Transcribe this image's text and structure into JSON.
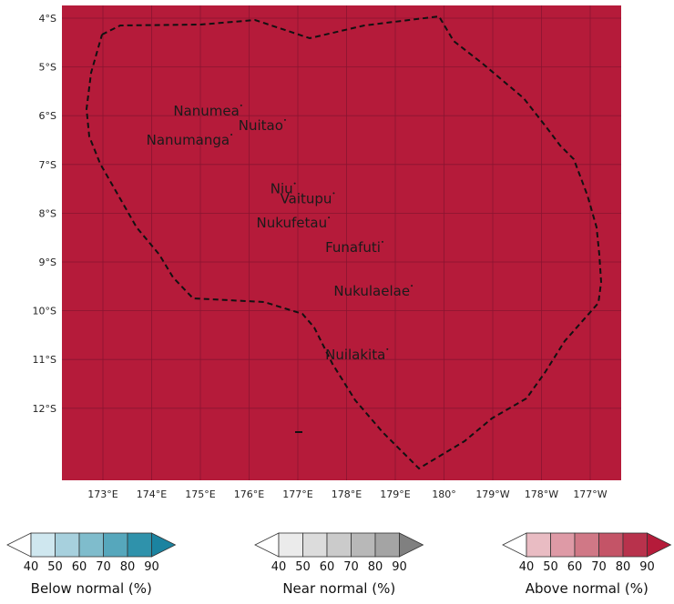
{
  "map": {
    "fill_color": "#b51b3a",
    "grid_color": "#8a1530",
    "y_ticks": [
      "4°S",
      "5°S",
      "6°S",
      "7°S",
      "8°S",
      "9°S",
      "10°S",
      "11°S",
      "12°S"
    ],
    "x_ticks": [
      "173°E",
      "174°E",
      "175°E",
      "176°E",
      "177°E",
      "178°E",
      "179°E",
      "180°",
      "179°W",
      "178°W",
      "177°W"
    ],
    "islands": [
      {
        "name": "Nanumea",
        "lon": 175.8,
        "lat": -5.9
      },
      {
        "name": "Nuitao",
        "lon": 176.7,
        "lat": -6.2
      },
      {
        "name": "Nanumanga",
        "lon": 175.6,
        "lat": -6.5
      },
      {
        "name": "Niu",
        "lon": 176.9,
        "lat": -7.5
      },
      {
        "name": "Vaitupu",
        "lon": 177.7,
        "lat": -7.7
      },
      {
        "name": "Nukufetau",
        "lon": 177.6,
        "lat": -8.2
      },
      {
        "name": "Funafuti",
        "lon": 178.7,
        "lat": -8.7
      },
      {
        "name": "Nukulaelae",
        "lon": 179.3,
        "lat": -9.6
      },
      {
        "name": "Nuilakita",
        "lon": 178.8,
        "lat": -10.9
      }
    ]
  },
  "legends": [
    {
      "name": "below-normal",
      "title": "Below normal (%)",
      "ticks": [
        "40",
        "50",
        "60",
        "70",
        "80",
        "90"
      ],
      "colors": [
        "#ffffff",
        "#cfe7ef",
        "#a7d0dd",
        "#7fbccc",
        "#56a7bc",
        "#2f92ab",
        "#1b83a0"
      ]
    },
    {
      "name": "near-normal",
      "title": "Near normal (%)",
      "ticks": [
        "40",
        "50",
        "60",
        "70",
        "80",
        "90"
      ],
      "colors": [
        "#ffffff",
        "#ebebeb",
        "#dcdcdc",
        "#cbcbcb",
        "#b8b8b8",
        "#a4a4a4",
        "#808080"
      ]
    },
    {
      "name": "above-normal",
      "title": "Above normal (%)",
      "ticks": [
        "40",
        "50",
        "60",
        "70",
        "80",
        "90"
      ],
      "colors": [
        "#ffffff",
        "#e9bcc3",
        "#de9aa6",
        "#d07886",
        "#c45467",
        "#b8324c",
        "#b51b3a"
      ]
    }
  ]
}
